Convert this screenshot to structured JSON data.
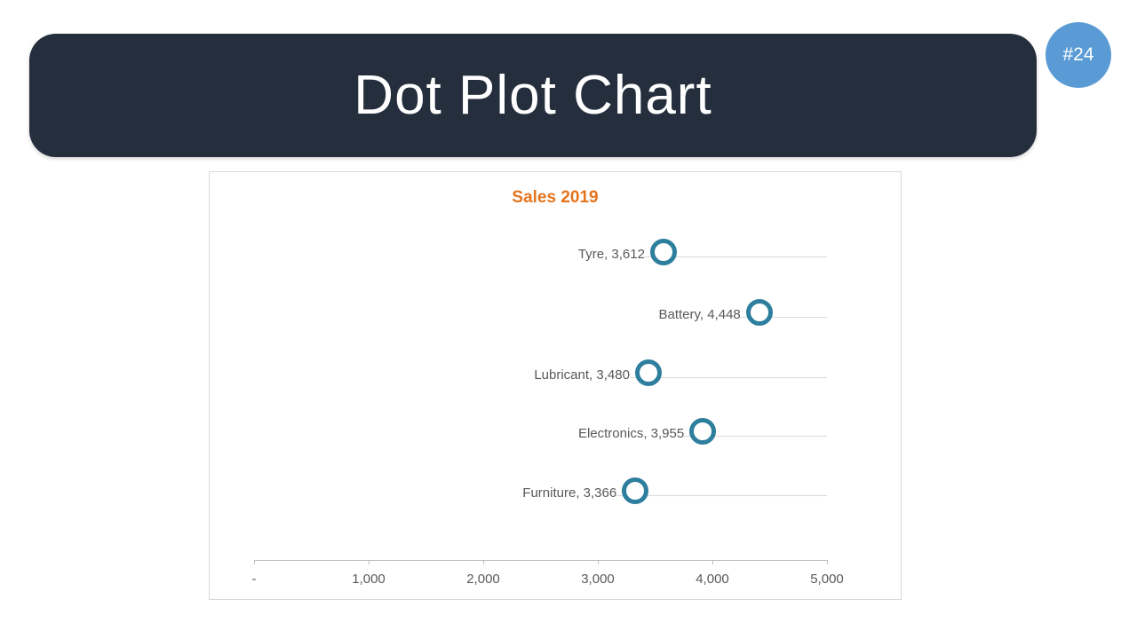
{
  "header": {
    "title": "Dot Plot Chart",
    "bg_color": "#242E3D",
    "text_color": "#FFFFFF"
  },
  "badge": {
    "label": "#24",
    "bg_color": "#5B9BD5",
    "text_color": "#FFFFFF"
  },
  "chart_data": {
    "type": "scatter",
    "variant": "dot-plot",
    "title": "Sales 2019",
    "title_color": "#E5741E",
    "categories": [
      "Tyre",
      "Battery",
      "Lubricant",
      "Electronics",
      "Furniture"
    ],
    "values": [
      3612,
      4448,
      3480,
      3955,
      3366
    ],
    "point_labels": [
      "Tyre, 3,612",
      "Battery, 4,448",
      "Lubricant, 3,480",
      "Electronics, 3,955",
      "Furniture, 3,366"
    ],
    "x_ticks": [
      0,
      1000,
      2000,
      3000,
      4000,
      5000
    ],
    "x_tick_labels": [
      "-",
      "1,000",
      "2,000",
      "3,000",
      "4,000",
      "5,000"
    ],
    "xlim": [
      0,
      5000
    ],
    "grid": "horizontal-per-category",
    "legend": "none",
    "marker": {
      "shape": "open-circle",
      "fill": "#FFFFFF",
      "stroke": "#2E7E9E",
      "stroke_width": 5,
      "diameter": 40
    },
    "colors": {
      "gridline": "#D9D9D9",
      "axis_line": "#BFBFBF",
      "label_text": "#595959",
      "panel_border": "#D9D9D9"
    }
  }
}
